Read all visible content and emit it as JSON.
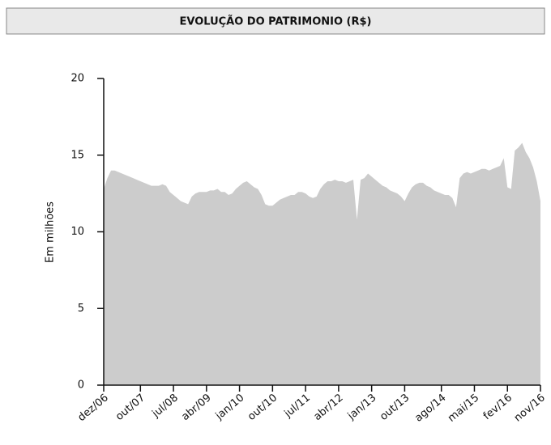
{
  "chart_data": {
    "type": "area",
    "title": "EVOLUÇÃO DO PATRIMONIO (R$)",
    "y_label": "Em milhões",
    "color": "#cccccc",
    "ylim": [
      0,
      20
    ],
    "yticks": [
      0,
      5,
      10,
      15,
      20
    ],
    "categories": [
      "dez/06",
      null,
      null,
      null,
      null,
      null,
      null,
      null,
      null,
      null,
      "out/07",
      null,
      null,
      null,
      null,
      null,
      null,
      null,
      null,
      "jul/08",
      null,
      null,
      null,
      null,
      null,
      null,
      null,
      null,
      "abr/09",
      null,
      null,
      null,
      null,
      null,
      null,
      null,
      null,
      "jan/10",
      null,
      null,
      null,
      null,
      null,
      null,
      null,
      null,
      "out/10",
      null,
      null,
      null,
      null,
      null,
      null,
      null,
      null,
      "jul/11",
      null,
      null,
      null,
      null,
      null,
      null,
      null,
      null,
      "abr/12",
      null,
      null,
      null,
      null,
      null,
      null,
      null,
      null,
      "jan/13",
      null,
      null,
      null,
      null,
      null,
      null,
      null,
      null,
      "out/13",
      null,
      null,
      null,
      null,
      null,
      null,
      null,
      null,
      null,
      "ago/14",
      null,
      null,
      null,
      null,
      null,
      null,
      null,
      null,
      "mai/15",
      null,
      null,
      null,
      null,
      null,
      null,
      null,
      null,
      "fev/16",
      null,
      null,
      null,
      null,
      null,
      null,
      null,
      null,
      "nov/16"
    ],
    "values": [
      12.8,
      13.5,
      14.0,
      14.0,
      13.9,
      13.8,
      13.7,
      13.6,
      13.5,
      13.4,
      13.3,
      13.2,
      13.1,
      13.0,
      13.0,
      13.0,
      13.1,
      13.0,
      12.6,
      12.4,
      12.2,
      12.0,
      11.9,
      11.8,
      12.3,
      12.5,
      12.6,
      12.6,
      12.6,
      12.7,
      12.7,
      12.8,
      12.6,
      12.6,
      12.4,
      12.5,
      12.8,
      13.0,
      13.2,
      13.3,
      13.1,
      12.9,
      12.8,
      12.4,
      11.8,
      11.7,
      11.7,
      11.9,
      12.1,
      12.2,
      12.3,
      12.4,
      12.4,
      12.6,
      12.6,
      12.5,
      12.3,
      12.2,
      12.3,
      12.8,
      13.1,
      13.3,
      13.3,
      13.4,
      13.3,
      13.3,
      13.2,
      13.3,
      13.4,
      10.8,
      13.4,
      13.5,
      13.8,
      13.6,
      13.4,
      13.2,
      13.0,
      12.9,
      12.7,
      12.6,
      12.5,
      12.3,
      12.0,
      12.5,
      12.9,
      13.1,
      13.2,
      13.2,
      13.0,
      12.9,
      12.7,
      12.6,
      12.5,
      12.4,
      12.4,
      12.2,
      11.6,
      13.5,
      13.8,
      13.9,
      13.8,
      13.9,
      14.0,
      14.1,
      14.1,
      14.0,
      14.1,
      14.2,
      14.3,
      14.8,
      12.9,
      12.8,
      15.3,
      15.5,
      15.8,
      15.2,
      14.8,
      14.2,
      13.3,
      12.0
    ]
  }
}
